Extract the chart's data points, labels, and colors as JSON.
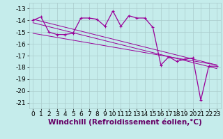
{
  "xlabel": "Windchill (Refroidissement éolien,°C)",
  "bg_color": "#c5eceb",
  "grid_color": "#aacccc",
  "line_color": "#990099",
  "x_hours": [
    0,
    1,
    2,
    3,
    4,
    5,
    6,
    7,
    8,
    9,
    10,
    11,
    12,
    13,
    14,
    15,
    16,
    17,
    18,
    19,
    20,
    21,
    22,
    23
  ],
  "windchill": [
    -14.0,
    -13.7,
    -15.0,
    -15.2,
    -15.2,
    -15.1,
    -13.8,
    -13.8,
    -13.9,
    -14.5,
    -13.2,
    -14.5,
    -13.6,
    -13.8,
    -13.8,
    -14.6,
    -17.8,
    -17.1,
    -17.5,
    -17.3,
    -17.2,
    -20.8,
    -17.9,
    -17.9
  ],
  "trend1_x": [
    0,
    23
  ],
  "trend1_y": [
    -13.9,
    -17.8
  ],
  "trend2_x": [
    0,
    23
  ],
  "trend2_y": [
    -14.2,
    -18.1
  ],
  "trend3_x": [
    0,
    23
  ],
  "trend3_y": [
    -15.1,
    -17.8
  ],
  "ylim": [
    -21.5,
    -12.5
  ],
  "yticks": [
    -13,
    -14,
    -15,
    -16,
    -17,
    -18,
    -19,
    -20,
    -21
  ],
  "xticks": [
    0,
    1,
    2,
    3,
    4,
    5,
    6,
    7,
    8,
    9,
    10,
    11,
    12,
    13,
    14,
    15,
    16,
    17,
    18,
    19,
    20,
    21,
    22,
    23
  ],
  "line_width": 0.9,
  "trend_lw": 0.7,
  "font_size": 6.5,
  "xlabel_size": 7.5,
  "xlabel_color": "#660066"
}
